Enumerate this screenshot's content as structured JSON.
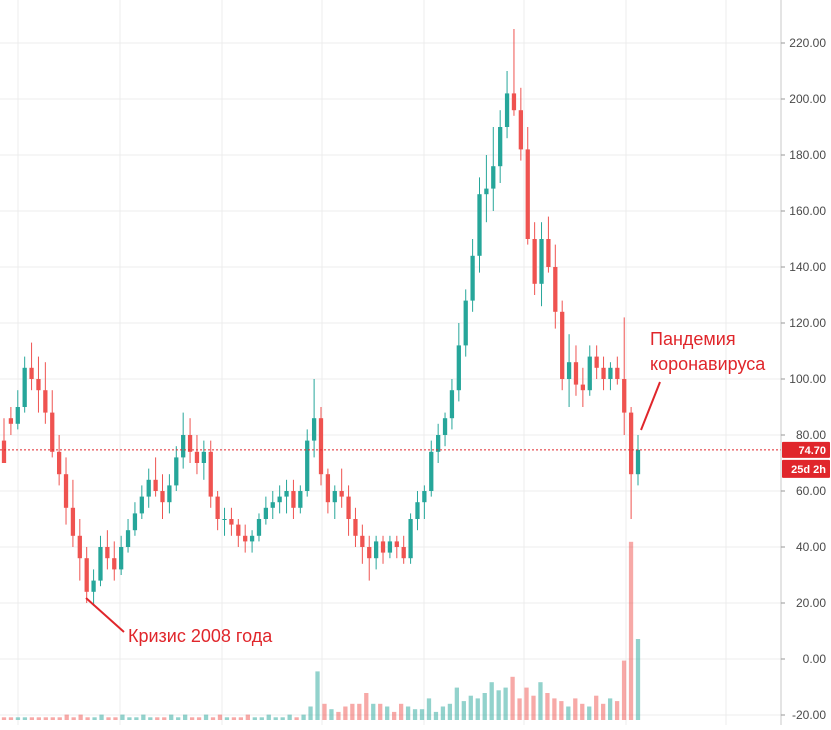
{
  "chart_data": {
    "type": "candlestick",
    "y_axis": {
      "ticks": [
        220,
        200,
        180,
        160,
        140,
        120,
        100,
        80,
        60,
        40,
        20,
        0,
        -20
      ],
      "tick_labels": [
        "220.00",
        "200.00",
        "180.00",
        "160.00",
        "140.00",
        "120.00",
        "100.00",
        "80.00",
        "60.00",
        "40.00",
        "20.00",
        "0.00",
        "-20.00"
      ],
      "range": [
        -21,
        232
      ],
      "position": "right"
    },
    "grid": true,
    "current_price": 74.7,
    "current_price_label": "74.70",
    "countdown_label": "25d 2h",
    "annotations": [
      {
        "text": "Кризис 2008 года",
        "points_to": "2008 low"
      },
      {
        "text_lines": [
          "Пандемия",
          "коронавируса"
        ],
        "points_to": "2020 low"
      }
    ],
    "candles": [
      [
        78,
        86,
        72,
        70
      ],
      [
        86,
        90,
        80,
        84
      ],
      [
        84,
        96,
        82,
        90
      ],
      [
        90,
        108,
        88,
        104
      ],
      [
        104,
        113,
        96,
        100
      ],
      [
        100,
        108,
        88,
        96
      ],
      [
        96,
        106,
        84,
        88
      ],
      [
        88,
        96,
        72,
        74
      ],
      [
        74,
        80,
        62,
        66
      ],
      [
        66,
        72,
        48,
        54
      ],
      [
        54,
        64,
        40,
        44
      ],
      [
        44,
        50,
        28,
        36
      ],
      [
        36,
        40,
        20,
        24
      ],
      [
        24,
        32,
        19,
        28
      ],
      [
        28,
        44,
        26,
        40
      ],
      [
        40,
        46,
        32,
        36
      ],
      [
        36,
        42,
        28,
        32
      ],
      [
        32,
        44,
        30,
        40
      ],
      [
        40,
        50,
        38,
        46
      ],
      [
        46,
        56,
        44,
        52
      ],
      [
        52,
        62,
        50,
        58
      ],
      [
        58,
        68,
        54,
        64
      ],
      [
        64,
        72,
        58,
        60
      ],
      [
        60,
        66,
        50,
        56
      ],
      [
        56,
        66,
        52,
        62
      ],
      [
        62,
        76,
        60,
        72
      ],
      [
        72,
        88,
        68,
        80
      ],
      [
        80,
        86,
        70,
        74
      ],
      [
        74,
        80,
        66,
        70
      ],
      [
        70,
        78,
        64,
        74
      ],
      [
        74,
        78,
        54,
        58
      ],
      [
        58,
        60,
        46,
        50
      ],
      [
        50,
        54,
        44,
        50
      ],
      [
        50,
        54,
        44,
        48
      ],
      [
        48,
        50,
        40,
        44
      ],
      [
        44,
        48,
        38,
        42
      ],
      [
        42,
        46,
        38,
        44
      ],
      [
        44,
        52,
        42,
        50
      ],
      [
        50,
        58,
        48,
        54
      ],
      [
        54,
        60,
        50,
        56
      ],
      [
        56,
        62,
        52,
        58
      ],
      [
        58,
        64,
        52,
        60
      ],
      [
        60,
        64,
        50,
        54
      ],
      [
        54,
        62,
        52,
        60
      ],
      [
        60,
        82,
        58,
        78
      ],
      [
        78,
        100,
        72,
        86
      ],
      [
        86,
        90,
        62,
        66
      ],
      [
        66,
        68,
        52,
        56
      ],
      [
        56,
        62,
        50,
        60
      ],
      [
        60,
        68,
        54,
        58
      ],
      [
        58,
        62,
        44,
        50
      ],
      [
        50,
        54,
        40,
        44
      ],
      [
        44,
        48,
        34,
        40
      ],
      [
        40,
        44,
        28,
        36
      ],
      [
        36,
        44,
        32,
        42
      ],
      [
        42,
        44,
        34,
        38
      ],
      [
        38,
        44,
        36,
        42
      ],
      [
        42,
        44,
        36,
        40
      ],
      [
        40,
        44,
        34,
        36
      ],
      [
        36,
        52,
        34,
        50
      ],
      [
        50,
        60,
        46,
        56
      ],
      [
        56,
        62,
        50,
        60
      ],
      [
        60,
        78,
        58,
        74
      ],
      [
        74,
        84,
        70,
        80
      ],
      [
        80,
        88,
        76,
        86
      ],
      [
        86,
        100,
        82,
        96
      ],
      [
        96,
        120,
        92,
        112
      ],
      [
        112,
        132,
        108,
        128
      ],
      [
        128,
        150,
        124,
        144
      ],
      [
        144,
        172,
        138,
        166
      ],
      [
        166,
        180,
        156,
        168
      ],
      [
        168,
        190,
        160,
        176
      ],
      [
        176,
        196,
        170,
        190
      ],
      [
        190,
        210,
        186,
        202
      ],
      [
        202,
        225,
        194,
        196
      ],
      [
        196,
        204,
        178,
        182
      ],
      [
        182,
        190,
        148,
        150
      ],
      [
        150,
        156,
        130,
        134
      ],
      [
        134,
        156,
        126,
        150
      ],
      [
        150,
        158,
        138,
        140
      ],
      [
        140,
        148,
        118,
        124
      ],
      [
        124,
        128,
        96,
        100
      ],
      [
        100,
        116,
        90,
        106
      ],
      [
        106,
        112,
        94,
        98
      ],
      [
        98,
        104,
        90,
        96
      ],
      [
        96,
        112,
        94,
        108
      ],
      [
        108,
        112,
        100,
        104
      ],
      [
        104,
        108,
        96,
        100
      ],
      [
        100,
        106,
        96,
        104
      ],
      [
        104,
        108,
        98,
        100
      ],
      [
        100,
        122,
        80,
        88
      ],
      [
        88,
        90,
        50,
        66
      ],
      [
        66,
        80,
        62,
        74.7
      ]
    ],
    "volume": [
      1,
      1,
      1,
      1,
      1,
      1,
      1,
      1,
      1,
      2,
      1,
      2,
      1,
      1,
      2,
      1,
      1,
      2,
      1,
      1,
      2,
      1,
      1,
      1,
      2,
      1,
      2,
      1,
      1,
      2,
      1,
      2,
      1,
      1,
      1,
      2,
      1,
      1,
      2,
      1,
      1,
      2,
      1,
      2,
      5,
      18,
      6,
      4,
      3,
      5,
      6,
      6,
      10,
      6,
      6,
      5,
      3,
      6,
      5,
      4,
      4,
      8,
      3,
      5,
      6,
      12,
      7,
      9,
      8,
      10,
      14,
      11,
      12,
      16,
      8,
      12,
      9,
      14,
      10,
      8,
      7,
      5,
      8,
      6,
      5,
      9,
      6,
      8,
      7,
      22,
      66,
      30
    ]
  }
}
